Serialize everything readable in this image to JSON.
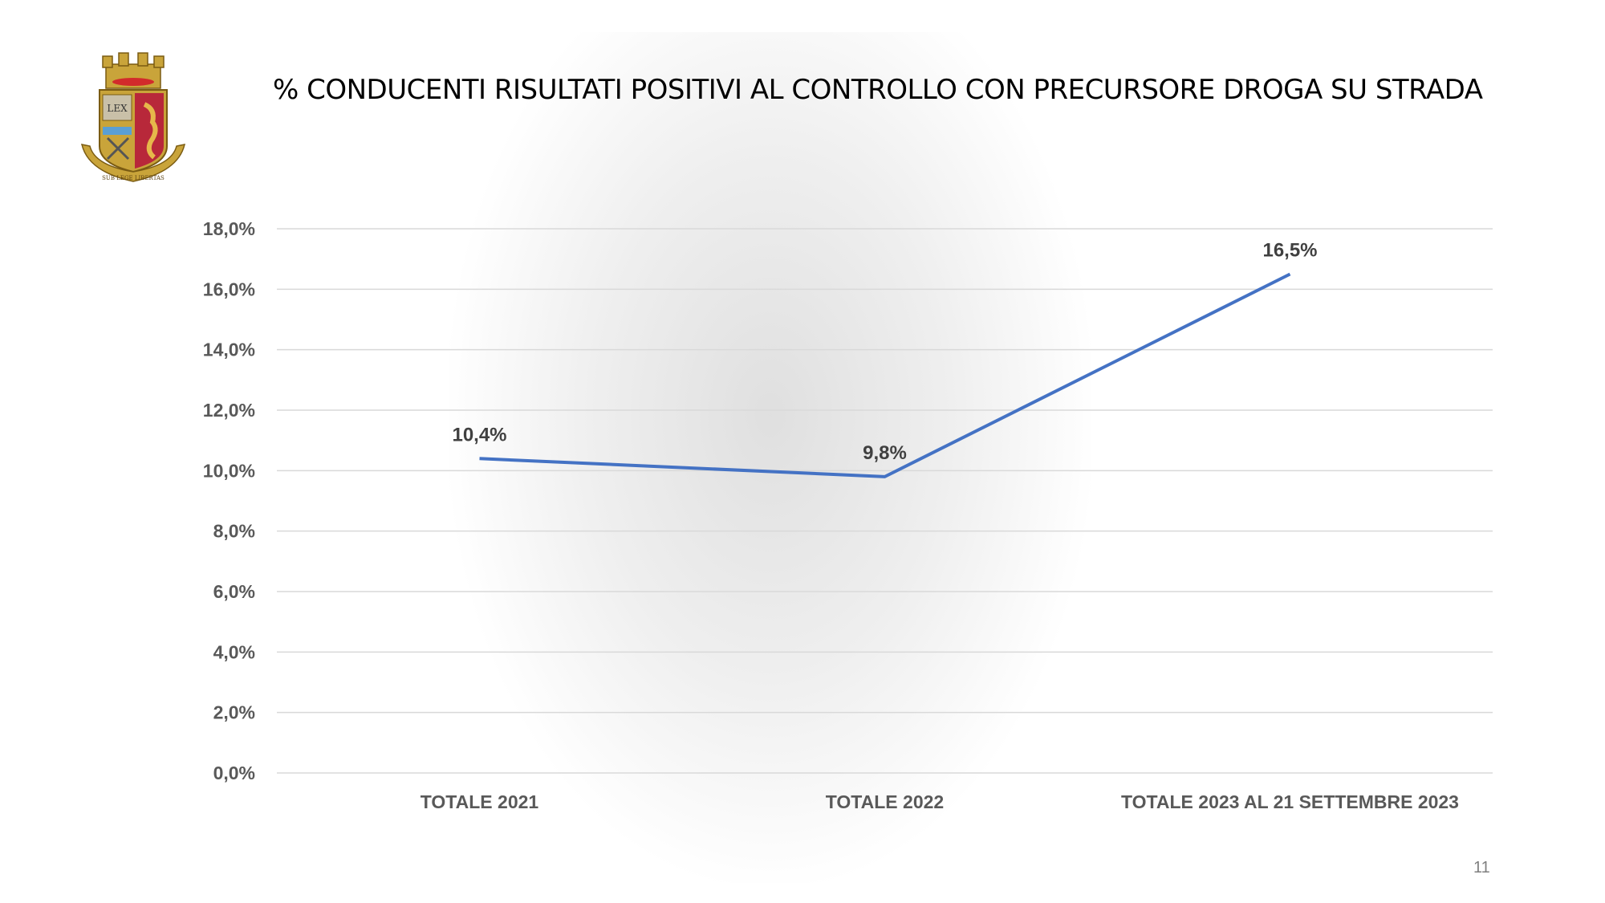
{
  "slide": {
    "title": "% CONDUCENTI RISULTATI POSITIVI AL CONTROLLO CON PRECURSORE DROGA SU STRADA",
    "page_number": "11",
    "emblem_text": "LEX",
    "emblem_motto": "SUB LEGE LIBERTAS"
  },
  "colors": {
    "line": "#4472c4",
    "gridline": "#d9d9d9",
    "tick_text": "#595959",
    "data_label": "#404040"
  },
  "chart_data": {
    "type": "line",
    "title": "% CONDUCENTI RISULTATI POSITIVI AL CONTROLLO CON PRECURSORE DROGA SU STRADA",
    "categories": [
      "TOTALE 2021",
      "TOTALE 2022",
      "TOTALE 2023 AL 21 SETTEMBRE 2023"
    ],
    "series": [
      {
        "values": [
          10.4,
          9.8,
          16.5
        ],
        "labels": [
          "10,4%",
          "9,8%",
          "16,5%"
        ]
      }
    ],
    "ylim": [
      0,
      18
    ],
    "yticks": [
      0,
      2,
      4,
      6,
      8,
      10,
      12,
      14,
      16,
      18
    ],
    "ytick_labels": [
      "0,0%",
      "2,0%",
      "4,0%",
      "6,0%",
      "8,0%",
      "10,0%",
      "12,0%",
      "14,0%",
      "16,0%",
      "18,0%"
    ],
    "grid": true,
    "legend": "none"
  }
}
